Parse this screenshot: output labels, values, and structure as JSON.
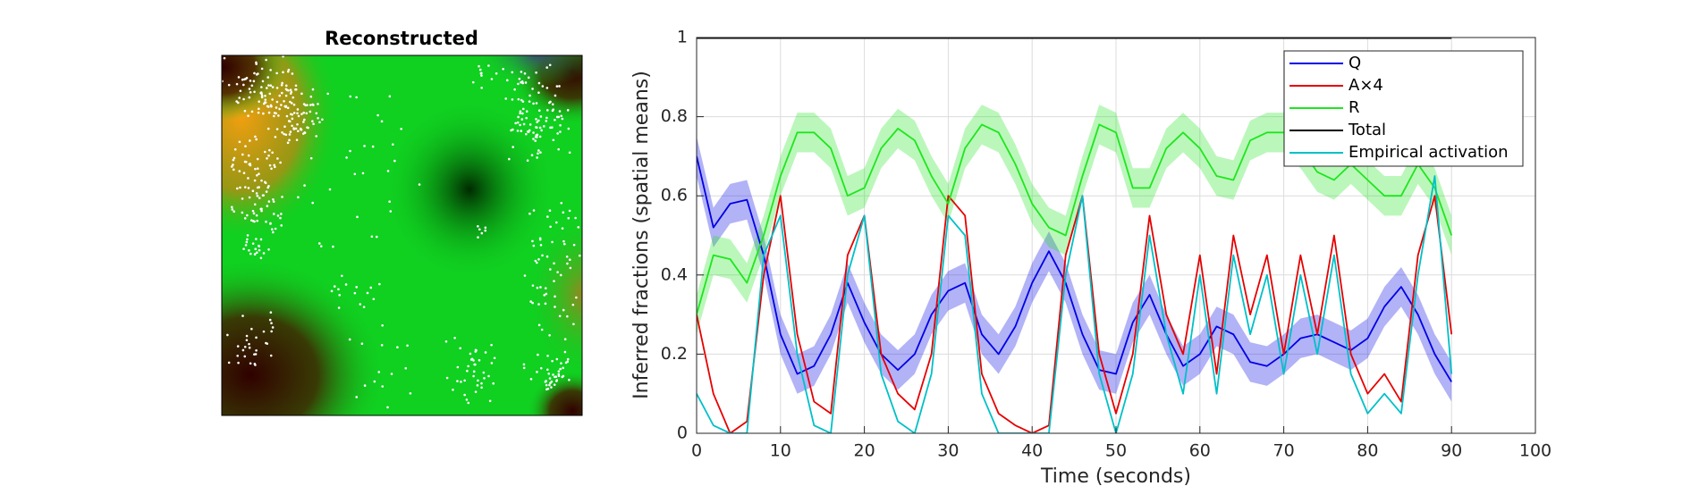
{
  "image_panel": {
    "title": "Reconstructed"
  },
  "chart_data": {
    "type": "line",
    "xlabel": "Time (seconds)",
    "ylabel": "Inferred fractions (spatial means)",
    "xlim": [
      0,
      100
    ],
    "xticks": [
      0,
      10,
      20,
      30,
      40,
      50,
      60,
      70,
      80,
      90,
      100
    ],
    "ylim": [
      0,
      1
    ],
    "yticks": [
      0,
      0.2,
      0.4,
      0.6,
      0.8,
      1
    ],
    "grid": true,
    "legend": "upper right",
    "x": [
      0,
      2,
      4,
      6,
      8,
      10,
      12,
      14,
      16,
      18,
      20,
      22,
      24,
      26,
      28,
      30,
      32,
      34,
      36,
      38,
      40,
      42,
      44,
      46,
      48,
      50,
      52,
      54,
      56,
      58,
      60,
      62,
      64,
      66,
      68,
      70,
      72,
      74,
      76,
      78,
      80,
      82,
      84,
      86,
      88,
      90
    ],
    "series": [
      {
        "name": "Q",
        "color": "#0000e6",
        "error": 0.05,
        "values": [
          0.7,
          0.52,
          0.58,
          0.59,
          0.45,
          0.25,
          0.15,
          0.17,
          0.25,
          0.38,
          0.28,
          0.2,
          0.16,
          0.2,
          0.3,
          0.36,
          0.38,
          0.25,
          0.2,
          0.27,
          0.38,
          0.46,
          0.38,
          0.25,
          0.16,
          0.15,
          0.28,
          0.35,
          0.25,
          0.17,
          0.2,
          0.27,
          0.25,
          0.18,
          0.17,
          0.2,
          0.24,
          0.25,
          0.23,
          0.21,
          0.24,
          0.32,
          0.37,
          0.3,
          0.2,
          0.13
        ]
      },
      {
        "name": "A×4",
        "color": "#e60000",
        "values": [
          0.3,
          0.1,
          0.0,
          0.03,
          0.4,
          0.6,
          0.25,
          0.08,
          0.05,
          0.45,
          0.55,
          0.2,
          0.1,
          0.06,
          0.2,
          0.6,
          0.55,
          0.15,
          0.05,
          0.02,
          0.0,
          0.02,
          0.45,
          0.6,
          0.2,
          0.05,
          0.2,
          0.55,
          0.3,
          0.2,
          0.45,
          0.15,
          0.5,
          0.3,
          0.45,
          0.2,
          0.45,
          0.25,
          0.5,
          0.2,
          0.1,
          0.15,
          0.08,
          0.45,
          0.6,
          0.25
        ]
      },
      {
        "name": "R",
        "color": "#1ee61e",
        "error": 0.05,
        "values": [
          0.3,
          0.45,
          0.44,
          0.38,
          0.5,
          0.65,
          0.76,
          0.76,
          0.72,
          0.6,
          0.62,
          0.72,
          0.77,
          0.74,
          0.65,
          0.58,
          0.72,
          0.78,
          0.76,
          0.68,
          0.58,
          0.52,
          0.5,
          0.65,
          0.78,
          0.76,
          0.62,
          0.62,
          0.72,
          0.76,
          0.72,
          0.65,
          0.64,
          0.74,
          0.76,
          0.76,
          0.72,
          0.66,
          0.64,
          0.68,
          0.64,
          0.6,
          0.6,
          0.68,
          0.62,
          0.5
        ]
      },
      {
        "name": "Total",
        "color": "#000000",
        "values": [
          1,
          1,
          1,
          1,
          1,
          1,
          1,
          1,
          1,
          1,
          1,
          1,
          1,
          1,
          1,
          1,
          1,
          1,
          1,
          1,
          1,
          1,
          1,
          1,
          1,
          1,
          1,
          1,
          1,
          1,
          1,
          1,
          1,
          1,
          1,
          1,
          1,
          1,
          1,
          1,
          1,
          1,
          1,
          1,
          1,
          1
        ]
      },
      {
        "name": "Empirical activation",
        "color": "#00c0c8",
        "values": [
          0.1,
          0.02,
          0.0,
          0.0,
          0.45,
          0.55,
          0.2,
          0.02,
          0.0,
          0.4,
          0.55,
          0.15,
          0.03,
          0.0,
          0.15,
          0.55,
          0.5,
          0.1,
          0.0,
          0.0,
          0.0,
          0.0,
          0.4,
          0.6,
          0.15,
          0.0,
          0.15,
          0.5,
          0.25,
          0.1,
          0.4,
          0.1,
          0.45,
          0.25,
          0.4,
          0.15,
          0.4,
          0.2,
          0.45,
          0.15,
          0.05,
          0.1,
          0.05,
          0.4,
          0.65,
          0.15
        ]
      }
    ]
  }
}
